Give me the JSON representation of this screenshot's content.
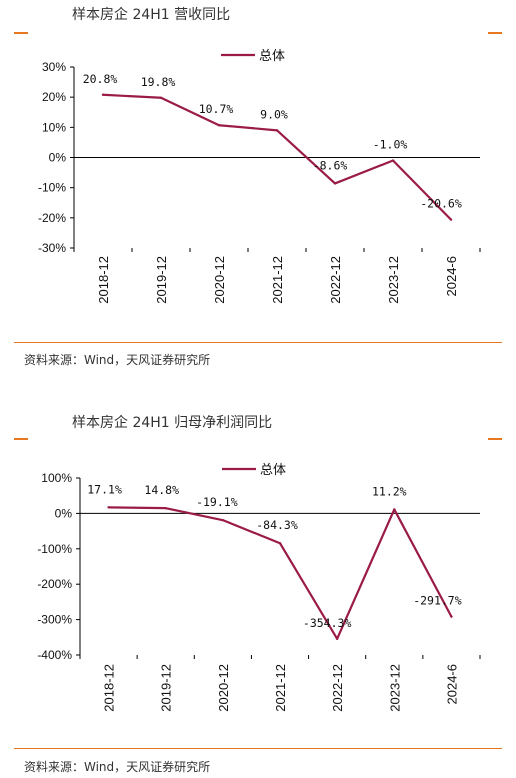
{
  "colors": {
    "series": "#9b1b47",
    "accent": "#e87722",
    "axis": "#000000"
  },
  "charts": [
    {
      "title": "样本房企 24H1 营收同比",
      "source": "资料来源：Wind，天风证券研究所"
    },
    {
      "title": "样本房企 24H1 归母净利润同比",
      "source": "资料来源：Wind，天风证券研究所"
    }
  ],
  "chart_data": [
    {
      "type": "line",
      "title": "样本房企 24H1 营收同比",
      "categories": [
        "2018-12",
        "2019-12",
        "2020-12",
        "2021-12",
        "2022-12",
        "2023-12",
        "2024-6"
      ],
      "series": [
        {
          "name": "总体",
          "values": [
            20.8,
            19.8,
            10.7,
            9.0,
            -8.6,
            -1.0,
            -20.6
          ]
        }
      ],
      "data_labels": [
        "20.8%",
        "19.8%",
        "10.7%",
        "9.0%",
        "-8.6%",
        "-1.0%",
        "-20.6%"
      ],
      "yticks": [
        30,
        20,
        10,
        0,
        -10,
        -20,
        -30
      ],
      "ytick_labels": [
        "30%",
        "20%",
        "10%",
        "0%",
        "-10%",
        "-20%",
        "-30%"
      ],
      "ylim": [
        -30,
        30
      ],
      "grid": false,
      "legend": "top-center"
    },
    {
      "type": "line",
      "title": "样本房企 24H1 归母净利润同比",
      "categories": [
        "2018-12",
        "2019-12",
        "2020-12",
        "2021-12",
        "2022-12",
        "2023-12",
        "2024-6"
      ],
      "series": [
        {
          "name": "总体",
          "values": [
            17.1,
            14.8,
            -19.1,
            -84.3,
            -354.3,
            11.2,
            -291.7
          ]
        }
      ],
      "data_labels": [
        "17.1%",
        "14.8%",
        "-19.1%",
        "-84.3%",
        "-354.3%",
        "11.2%",
        "-291.7%"
      ],
      "yticks": [
        100,
        0,
        -100,
        -200,
        -300,
        -400
      ],
      "ytick_labels": [
        "100%",
        "0%",
        "-100%",
        "-200%",
        "-300%",
        "-400%"
      ],
      "ylim": [
        -400,
        100
      ],
      "grid": false,
      "legend": "top-center"
    }
  ]
}
